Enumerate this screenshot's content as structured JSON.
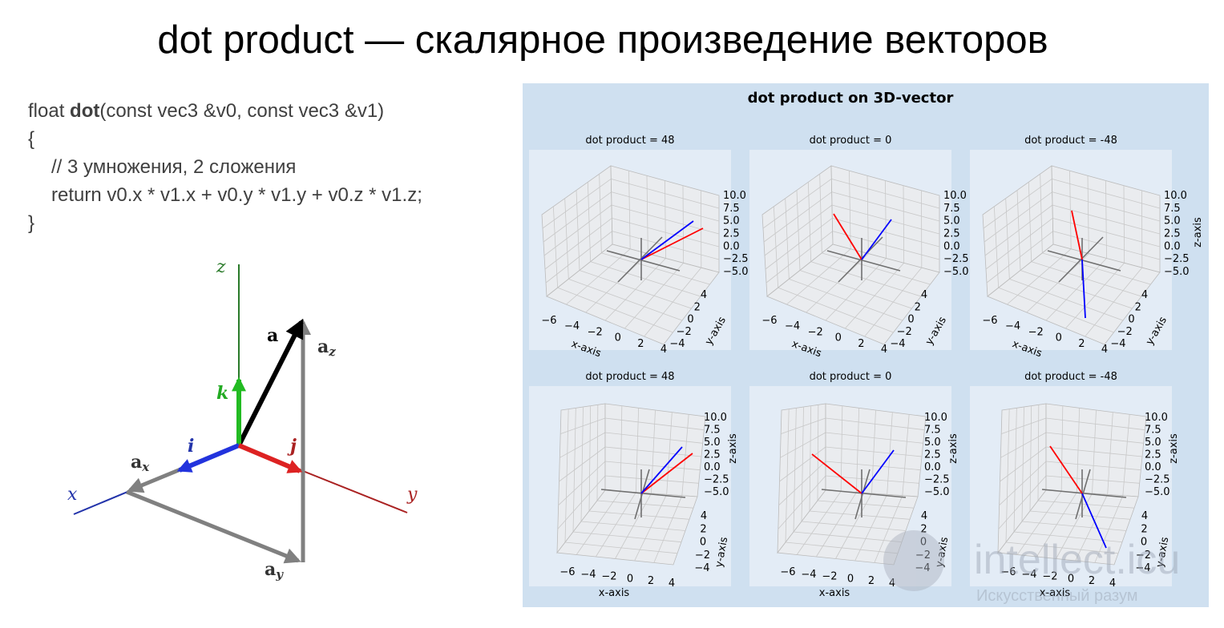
{
  "title": "dot product — скалярное произведение векторов",
  "code": {
    "signature": {
      "pre": "float ",
      "name": "dot",
      "post": "(const vec3 &v0, const vec3 &v1)"
    },
    "lines": [
      "{",
      "// 3 умножения, 2 сложения",
      "return v0.x * v1.x + v0.y * v1.y + v0.z * v1.z;",
      "}"
    ]
  },
  "diagram": {
    "z": "z",
    "a": "a",
    "a_z": {
      "base": "a",
      "sub": "z"
    },
    "k": "k",
    "i": "i",
    "j": "j",
    "a_x": {
      "base": "a",
      "sub": "x"
    },
    "x": "x",
    "y": "y",
    "a_y": {
      "base": "a",
      "sub": "y"
    }
  },
  "figure": {
    "title": "dot product on 3D-vector",
    "z_ticks": [
      "10.0",
      "7.5",
      "5.0",
      "2.5",
      "0.0",
      "−2.5",
      "−5.0"
    ],
    "x_ticks": [
      "−6",
      "−4",
      "−2",
      "0",
      "2",
      "4"
    ],
    "y_ticks": [
      "4",
      "2",
      "0",
      "−2",
      "−4"
    ],
    "panels": [
      {
        "title": "dot product = 48",
        "x_label": "x-axis",
        "y_label": "y-axis"
      },
      {
        "title": "dot product = 0",
        "x_label": "x-axis",
        "y_label": "y-axis"
      },
      {
        "title": "dot product = -48",
        "x_label": "x-axis",
        "y_label": "y-axis",
        "z_label": "z-axis"
      },
      {
        "title": "dot product = 48",
        "x_label": "x-axis",
        "y_label": "y-axis",
        "z_label": "z-axis"
      },
      {
        "title": "dot product = 0",
        "x_label": "x-axis",
        "y_label": "y-axis",
        "z_label": "z-axis"
      },
      {
        "title": "dot product = -48",
        "x_label": "x-axis",
        "y_label": "y-axis",
        "z_label": "z-axis"
      }
    ]
  },
  "watermark": {
    "brand": "intellect.icu",
    "tagline": "Искусственный разум"
  }
}
